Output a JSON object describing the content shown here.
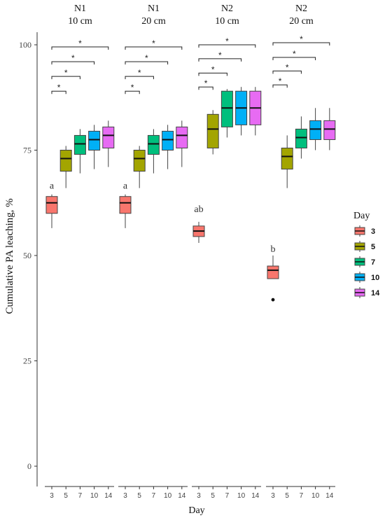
{
  "chart_data": {
    "type": "boxplot",
    "ylabel": "Cumulative  PA leaching, %",
    "xlabel": "Day",
    "ylim": [
      0,
      100
    ],
    "yticks": [
      0,
      25,
      50,
      75,
      100
    ],
    "categories": [
      "3",
      "5",
      "7",
      "10",
      "14"
    ],
    "legend": {
      "title": "Day",
      "position": "right",
      "entries": [
        "3",
        "5",
        "7",
        "10",
        "14"
      ]
    },
    "colors": {
      "3": "#f8766d",
      "5": "#a3a500",
      "7": "#00bf7d",
      "10": "#00b0f6",
      "14": "#e76bf3"
    },
    "panels": [
      {
        "title_line1": "N1",
        "title_line2": "10 cm",
        "letter": "a",
        "letter_y": 66.5,
        "boxes": [
          {
            "day": "3",
            "min": 56.5,
            "q1": 60,
            "median": 62.5,
            "q3": 64,
            "max": 64.5
          },
          {
            "day": "5",
            "min": 66,
            "q1": 70,
            "median": 73,
            "q3": 75,
            "max": 76
          },
          {
            "day": "7",
            "min": 69.5,
            "q1": 74,
            "median": 76.5,
            "q3": 78.5,
            "max": 80
          },
          {
            "day": "10",
            "min": 70.5,
            "q1": 75,
            "median": 77.5,
            "q3": 79.5,
            "max": 81
          },
          {
            "day": "14",
            "min": 71,
            "q1": 75.5,
            "median": 78.5,
            "q3": 80.5,
            "max": 82
          }
        ],
        "outliers": [],
        "brackets": [
          {
            "from": "3",
            "to": "5",
            "y": 89,
            "label": "*"
          },
          {
            "from": "3",
            "to": "7",
            "y": 92.5,
            "label": "*"
          },
          {
            "from": "3",
            "to": "10",
            "y": 96,
            "label": "*"
          },
          {
            "from": "3",
            "to": "14",
            "y": 99.5,
            "label": "*"
          }
        ]
      },
      {
        "title_line1": "N1",
        "title_line2": "20 cm",
        "letter": "a",
        "letter_y": 66.5,
        "boxes": [
          {
            "day": "3",
            "min": 56.5,
            "q1": 60,
            "median": 62.5,
            "q3": 64,
            "max": 64.5
          },
          {
            "day": "5",
            "min": 66,
            "q1": 70,
            "median": 73,
            "q3": 75,
            "max": 76
          },
          {
            "day": "7",
            "min": 69.5,
            "q1": 74,
            "median": 76.5,
            "q3": 78.5,
            "max": 80
          },
          {
            "day": "10",
            "min": 70.5,
            "q1": 75,
            "median": 77.5,
            "q3": 79.5,
            "max": 81
          },
          {
            "day": "14",
            "min": 71,
            "q1": 75.5,
            "median": 78.5,
            "q3": 80.5,
            "max": 82
          }
        ],
        "outliers": [],
        "brackets": [
          {
            "from": "3",
            "to": "5",
            "y": 89,
            "label": "*"
          },
          {
            "from": "3",
            "to": "7",
            "y": 92.5,
            "label": "*"
          },
          {
            "from": "3",
            "to": "10",
            "y": 96,
            "label": "*"
          },
          {
            "from": "3",
            "to": "14",
            "y": 99.5,
            "label": "*"
          }
        ]
      },
      {
        "title_line1": "N2",
        "title_line2": "10 cm",
        "letter": "ab",
        "letter_y": 61,
        "boxes": [
          {
            "day": "3",
            "min": 53,
            "q1": 54.5,
            "median": 55.8,
            "q3": 57,
            "max": 58
          },
          {
            "day": "5",
            "min": 74,
            "q1": 75.5,
            "median": 80,
            "q3": 83.5,
            "max": 84.5
          },
          {
            "day": "7",
            "min": 78,
            "q1": 80.5,
            "median": 85,
            "q3": 89,
            "max": 89.5
          },
          {
            "day": "10",
            "min": 78.5,
            "q1": 81,
            "median": 85,
            "q3": 89,
            "max": 90
          },
          {
            "day": "14",
            "min": 78.5,
            "q1": 81,
            "median": 85,
            "q3": 89,
            "max": 90
          }
        ],
        "outliers": [],
        "brackets": [
          {
            "from": "3",
            "to": "5",
            "y": 90,
            "label": "*"
          },
          {
            "from": "3",
            "to": "7",
            "y": 93.3,
            "label": "*"
          },
          {
            "from": "3",
            "to": "10",
            "y": 96.7,
            "label": "*"
          },
          {
            "from": "3",
            "to": "14",
            "y": 100,
            "label": "*"
          }
        ]
      },
      {
        "title_line1": "N2",
        "title_line2": "20 cm",
        "letter": "b",
        "letter_y": 51.5,
        "boxes": [
          {
            "day": "3",
            "min": 44.5,
            "q1": 44.5,
            "median": 46.5,
            "q3": 47.5,
            "max": 50
          },
          {
            "day": "5",
            "min": 66,
            "q1": 70.5,
            "median": 73.5,
            "q3": 75.5,
            "max": 78.5
          },
          {
            "day": "7",
            "min": 73,
            "q1": 75.5,
            "median": 78,
            "q3": 80,
            "max": 83
          },
          {
            "day": "10",
            "min": 75,
            "q1": 77.5,
            "median": 80,
            "q3": 82,
            "max": 85
          },
          {
            "day": "14",
            "min": 75,
            "q1": 77.5,
            "median": 80,
            "q3": 82,
            "max": 85
          }
        ],
        "outliers": [
          {
            "day": "3",
            "value": 39.5
          }
        ],
        "brackets": [
          {
            "from": "3",
            "to": "5",
            "y": 90.5,
            "label": "*"
          },
          {
            "from": "3",
            "to": "7",
            "y": 93.8,
            "label": "*"
          },
          {
            "from": "3",
            "to": "10",
            "y": 97,
            "label": "*"
          },
          {
            "from": "3",
            "to": "14",
            "y": 100.5,
            "label": "*"
          }
        ]
      }
    ]
  }
}
